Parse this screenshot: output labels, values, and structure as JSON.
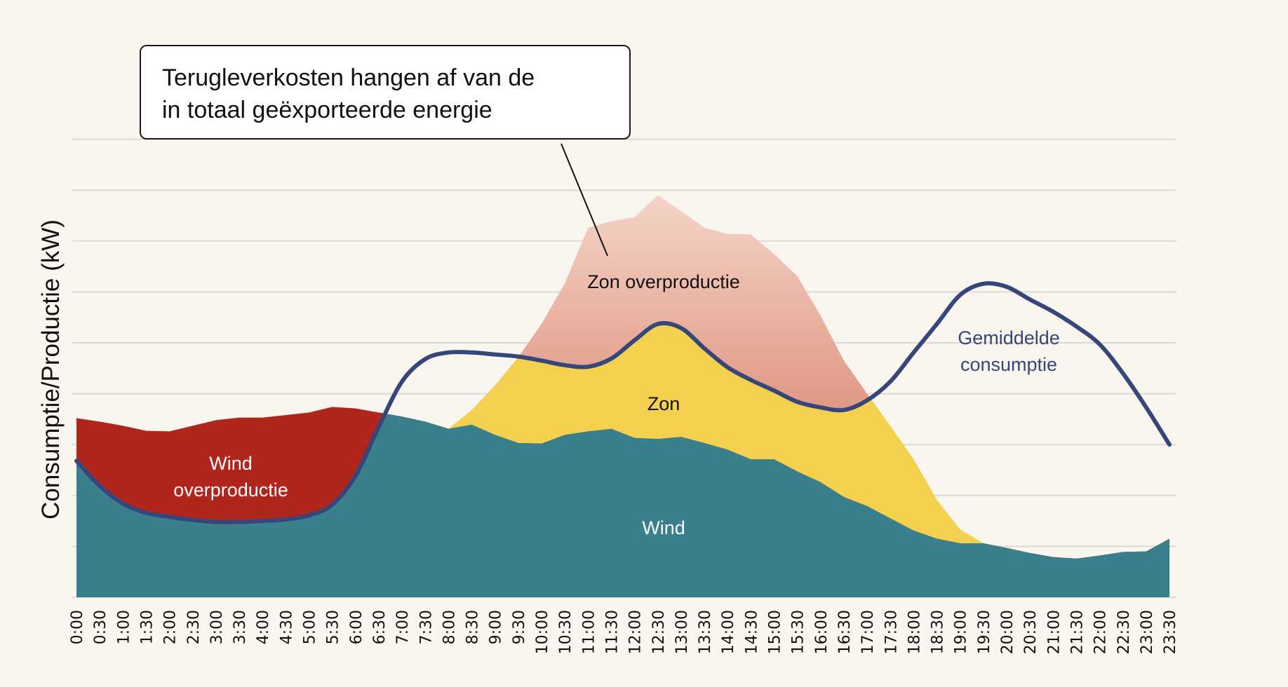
{
  "colors": {
    "background": "#f9f6f0",
    "wind": "#3a7f8c",
    "wind_overproduction": "#b0251c",
    "solar": "#f4d04f",
    "solar_overproduction_top": "#f5d9cc",
    "solar_overproduction_bottom": "#e09684",
    "consumption_line": "#37467a",
    "grid": "#dddad4"
  },
  "callout": {
    "line1": "Terugleverkosten hangen af van de",
    "line2": "in totaal geëxporteerde energie"
  },
  "chart_data": {
    "type": "area",
    "title": "",
    "xlabel": "",
    "ylabel": "Consumptie/Productie (kW)",
    "ylim": [
      0,
      9
    ],
    "grid": true,
    "y_tick_labels_shown": false,
    "categories": [
      "0:00",
      "0:30",
      "1:00",
      "1:30",
      "2:00",
      "2:30",
      "3:00",
      "3:30",
      "4:00",
      "4:30",
      "5:00",
      "5:30",
      "6:00",
      "6:30",
      "7:00",
      "7:30",
      "8:00",
      "8:30",
      "9:00",
      "9:30",
      "10:00",
      "10:30",
      "11:00",
      "11:30",
      "12:00",
      "12:30",
      "13:00",
      "13:30",
      "14:00",
      "14:30",
      "15:00",
      "15:30",
      "16:00",
      "16:30",
      "17:00",
      "17:30",
      "18:00",
      "18:30",
      "19:00",
      "19:30",
      "20:00",
      "20:30",
      "21:00",
      "21:30",
      "22:00",
      "22:30",
      "23:00",
      "23:30"
    ],
    "series": [
      {
        "name": "Wind",
        "kind": "stacked-area",
        "values": [
          3.52,
          3.45,
          3.37,
          3.27,
          3.26,
          3.37,
          3.48,
          3.53,
          3.53,
          3.58,
          3.63,
          3.74,
          3.71,
          3.63,
          3.55,
          3.45,
          3.31,
          3.39,
          3.19,
          3.03,
          3.02,
          3.19,
          3.26,
          3.31,
          3.13,
          3.11,
          3.15,
          3.03,
          2.9,
          2.71,
          2.71,
          2.47,
          2.26,
          1.97,
          1.79,
          1.55,
          1.31,
          1.15,
          1.06,
          1.06,
          0.97,
          0.87,
          0.79,
          0.76,
          0.82,
          0.89,
          0.9,
          1.15
        ]
      },
      {
        "name": "Zon",
        "kind": "stacked-area",
        "values": [
          0,
          0,
          0,
          0,
          0,
          0,
          0,
          0,
          0,
          0,
          0,
          0,
          0,
          0,
          0,
          0,
          0,
          0.29,
          0.97,
          1.69,
          2.35,
          2.98,
          4.0,
          4.08,
          4.34,
          4.79,
          4.44,
          4.23,
          4.24,
          4.42,
          4.03,
          3.84,
          3.27,
          2.68,
          2.21,
          1.81,
          1.4,
          0.76,
          0.27,
          0,
          0,
          0,
          0,
          0,
          0,
          0,
          0,
          0
        ]
      },
      {
        "name": "Gemiddelde consumptie",
        "kind": "line",
        "values": [
          2.68,
          2.19,
          1.84,
          1.66,
          1.58,
          1.52,
          1.48,
          1.48,
          1.5,
          1.53,
          1.61,
          1.82,
          2.39,
          3.35,
          4.24,
          4.68,
          4.81,
          4.81,
          4.77,
          4.73,
          4.65,
          4.56,
          4.53,
          4.69,
          5.05,
          5.37,
          5.29,
          4.89,
          4.52,
          4.27,
          4.06,
          3.84,
          3.73,
          3.68,
          3.87,
          4.24,
          4.81,
          5.37,
          5.94,
          6.16,
          6.1,
          5.85,
          5.61,
          5.32,
          4.97,
          4.4,
          3.73,
          3.0
        ]
      }
    ],
    "annotations": {
      "wind_overproduction": [
        "Wind",
        "overproductie"
      ],
      "wind": "Wind",
      "solar": "Zon",
      "solar_overproduction": "Zon overproductie",
      "consumption": [
        "Gemiddelde",
        "consumptie"
      ]
    }
  }
}
